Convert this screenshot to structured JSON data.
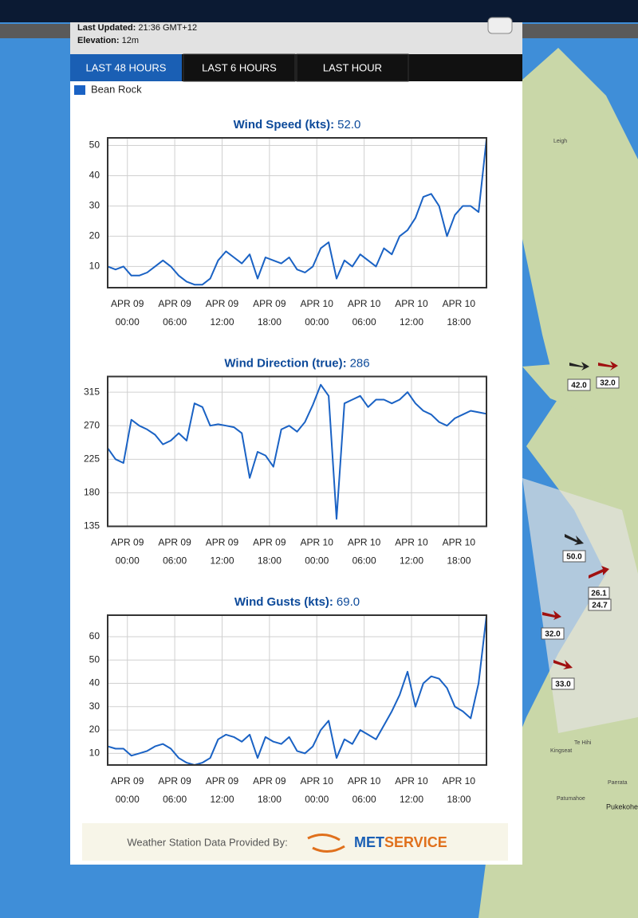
{
  "header": {
    "updated_label": "Last Updated:",
    "updated_value": "21:36 GMT+12",
    "elevation_label": "Elevation:",
    "elevation_value": "12m"
  },
  "tabs": [
    "LAST 48 HOURS",
    "LAST 6 HOURS",
    "LAST HOUR"
  ],
  "legend": {
    "name": "Bean Rock",
    "color": "#1a62c4"
  },
  "chart_data": [
    {
      "type": "line",
      "title": "Wind Speed (kts):",
      "current": "52.0",
      "color": "#1a62c4",
      "x": [
        -2.5,
        -1.5,
        -0.5,
        0.5,
        1.5,
        2.5,
        3.5,
        4.5,
        5.5,
        6.5,
        7.5,
        8.5,
        9.5,
        10.5,
        11.5,
        12.5,
        13.5,
        14.5,
        15.5,
        16.5,
        17.5,
        18.5,
        19.5,
        20.5,
        21.5,
        22.5,
        23.5,
        24.5,
        25.5,
        26.5,
        27.5,
        28.5,
        29.5,
        30.5,
        31.5,
        32.5,
        33.5,
        34.5,
        35.5,
        36.5,
        37.5,
        38.5,
        39.5,
        40.5,
        41.5,
        42.5,
        43.5,
        44.5,
        45.5
      ],
      "values": [
        10,
        9,
        10,
        7,
        7,
        8,
        10,
        12,
        10,
        7,
        5,
        4,
        4,
        6,
        12,
        15,
        13,
        11,
        14,
        6,
        13,
        12,
        11,
        13,
        9,
        8,
        10,
        16,
        18,
        6,
        12,
        10,
        14,
        12,
        10,
        16,
        14,
        20,
        22,
        26,
        33,
        34,
        30,
        20,
        27,
        30,
        30,
        28,
        52
      ],
      "xlim": [
        -2.5,
        45.5
      ],
      "ylim": [
        3,
        52.5
      ],
      "yticks": [
        10,
        20,
        30,
        40,
        50
      ],
      "grid": true,
      "xticks": [
        {
          "value": 0,
          "label": "APR 09",
          "sublabel": "00:00"
        },
        {
          "value": 6,
          "label": "APR 09",
          "sublabel": "06:00"
        },
        {
          "value": 12,
          "label": "APR 09",
          "sublabel": "12:00"
        },
        {
          "value": 18,
          "label": "APR 09",
          "sublabel": "18:00"
        },
        {
          "value": 24,
          "label": "APR 10",
          "sublabel": "00:00"
        },
        {
          "value": 30,
          "label": "APR 10",
          "sublabel": "06:00"
        },
        {
          "value": 36,
          "label": "APR 10",
          "sublabel": "12:00"
        },
        {
          "value": 42,
          "label": "APR 10",
          "sublabel": "18:00"
        }
      ]
    },
    {
      "type": "line",
      "title": "Wind Direction (true):",
      "current": "286",
      "color": "#1a62c4",
      "x": [
        -2.5,
        -1.5,
        -0.5,
        0.5,
        1.5,
        2.5,
        3.5,
        4.5,
        5.5,
        6.5,
        7.5,
        8.5,
        9.5,
        10.5,
        11.5,
        12.5,
        13.5,
        14.5,
        15.5,
        16.5,
        17.5,
        18.5,
        19.5,
        20.5,
        21.5,
        22.5,
        23.5,
        24.5,
        25.5,
        26.5,
        27.5,
        28.5,
        29.5,
        30.5,
        31.5,
        32.5,
        33.5,
        34.5,
        35.5,
        36.5,
        37.5,
        38.5,
        39.5,
        40.5,
        41.5,
        42.5,
        43.5,
        44.5,
        45.5
      ],
      "values": [
        240,
        225,
        220,
        278,
        270,
        265,
        258,
        245,
        250,
        260,
        250,
        300,
        295,
        270,
        272,
        270,
        268,
        260,
        200,
        235,
        230,
        215,
        265,
        270,
        262,
        275,
        298,
        325,
        310,
        145,
        300,
        305,
        310,
        295,
        305,
        305,
        300,
        305,
        315,
        300,
        290,
        285,
        275,
        270,
        280,
        285,
        290,
        288,
        286
      ],
      "xlim": [
        -2.5,
        45.5
      ],
      "ylim": [
        135,
        336
      ],
      "yticks": [
        135,
        180,
        225,
        270,
        315
      ],
      "grid": true,
      "xticks": [
        {
          "value": 0,
          "label": "APR 09",
          "sublabel": "00:00"
        },
        {
          "value": 6,
          "label": "APR 09",
          "sublabel": "06:00"
        },
        {
          "value": 12,
          "label": "APR 09",
          "sublabel": "12:00"
        },
        {
          "value": 18,
          "label": "APR 09",
          "sublabel": "18:00"
        },
        {
          "value": 24,
          "label": "APR 10",
          "sublabel": "00:00"
        },
        {
          "value": 30,
          "label": "APR 10",
          "sublabel": "06:00"
        },
        {
          "value": 36,
          "label": "APR 10",
          "sublabel": "12:00"
        },
        {
          "value": 42,
          "label": "APR 10",
          "sublabel": "18:00"
        }
      ]
    },
    {
      "type": "line",
      "title": "Wind Gusts (kts):",
      "current": "69.0",
      "color": "#1a62c4",
      "x": [
        -2.5,
        -1.5,
        -0.5,
        0.5,
        1.5,
        2.5,
        3.5,
        4.5,
        5.5,
        6.5,
        7.5,
        8.5,
        9.5,
        10.5,
        11.5,
        12.5,
        13.5,
        14.5,
        15.5,
        16.5,
        17.5,
        18.5,
        19.5,
        20.5,
        21.5,
        22.5,
        23.5,
        24.5,
        25.5,
        26.5,
        27.5,
        28.5,
        29.5,
        30.5,
        31.5,
        32.5,
        33.5,
        34.5,
        35.5,
        36.5,
        37.5,
        38.5,
        39.5,
        40.5,
        41.5,
        42.5,
        43.5,
        44.5,
        45.5
      ],
      "values": [
        13,
        12,
        12,
        9,
        10,
        11,
        13,
        14,
        12,
        8,
        6,
        5,
        6,
        8,
        16,
        18,
        17,
        15,
        18,
        8,
        17,
        15,
        14,
        17,
        11,
        10,
        13,
        20,
        24,
        8,
        16,
        14,
        20,
        18,
        16,
        22,
        28,
        35,
        45,
        30,
        40,
        43,
        42,
        38,
        30,
        28,
        25,
        40,
        69
      ],
      "xlim": [
        -2.5,
        45.5
      ],
      "ylim": [
        5,
        69.2
      ],
      "yticks": [
        10,
        20,
        30,
        40,
        50,
        60
      ],
      "grid": true,
      "xticks": [
        {
          "value": 0,
          "label": "APR 09",
          "sublabel": "00:00"
        },
        {
          "value": 6,
          "label": "APR 09",
          "sublabel": "06:00"
        },
        {
          "value": 12,
          "label": "APR 09",
          "sublabel": "12:00"
        },
        {
          "value": 18,
          "label": "APR 09",
          "sublabel": "18:00"
        },
        {
          "value": 24,
          "label": "APR 10",
          "sublabel": "00:00"
        },
        {
          "value": 30,
          "label": "APR 10",
          "sublabel": "06:00"
        },
        {
          "value": 36,
          "label": "APR 10",
          "sublabel": "12:00"
        },
        {
          "value": 42,
          "label": "APR 10",
          "sublabel": "18:00"
        }
      ]
    }
  ],
  "footer": {
    "text": "Weather Station Data Provided By:",
    "logo_a": "MET",
    "logo_b": "SERVICE"
  },
  "map": {
    "markers": [
      "42.0",
      "32.0",
      "50.0",
      "26.1",
      "24.7",
      "32.0",
      "33.0"
    ],
    "places": [
      "Leigh",
      "Kingseat",
      "Pukekohe",
      "Paerata",
      "Patumahoe",
      "Te Hihi"
    ]
  }
}
